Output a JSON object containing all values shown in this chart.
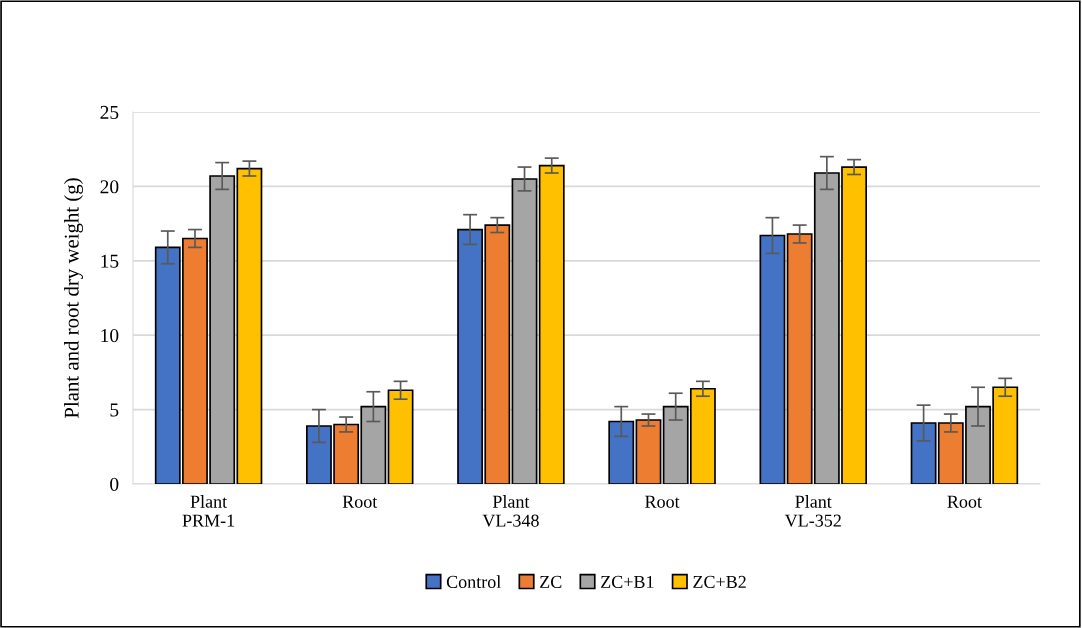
{
  "chart_data": {
    "type": "bar",
    "ylabel": "Plant and root dry weight (g)",
    "categories": [
      "Plant\nPRM-1",
      "Root",
      "Plant\nVL-348",
      "Root",
      "Plant\nVL-352",
      "Root"
    ],
    "series": [
      {
        "name": "Control",
        "color": "#4472c4",
        "values": [
          15.9,
          3.9,
          17.1,
          4.2,
          16.7,
          4.1
        ],
        "errors": [
          1.1,
          1.1,
          1.0,
          1.0,
          1.2,
          1.2
        ]
      },
      {
        "name": "ZC",
        "color": "#ed7d31",
        "values": [
          16.5,
          4.0,
          17.4,
          4.3,
          16.8,
          4.1
        ],
        "errors": [
          0.6,
          0.5,
          0.5,
          0.4,
          0.6,
          0.6
        ]
      },
      {
        "name": "ZC+B1",
        "color": "#a5a5a5",
        "values": [
          20.7,
          5.2,
          20.5,
          5.2,
          20.9,
          5.2
        ],
        "errors": [
          0.9,
          1.0,
          0.8,
          0.9,
          1.1,
          1.3
        ]
      },
      {
        "name": "ZC+B2",
        "color": "#ffc000",
        "values": [
          21.2,
          6.3,
          21.4,
          6.4,
          21.3,
          6.5
        ],
        "errors": [
          0.5,
          0.6,
          0.5,
          0.5,
          0.5,
          0.6
        ]
      }
    ],
    "ylim": [
      0,
      25
    ],
    "yticks": [
      0,
      5,
      10,
      15,
      20,
      25
    ],
    "grid": "y",
    "legend": "bottom"
  }
}
